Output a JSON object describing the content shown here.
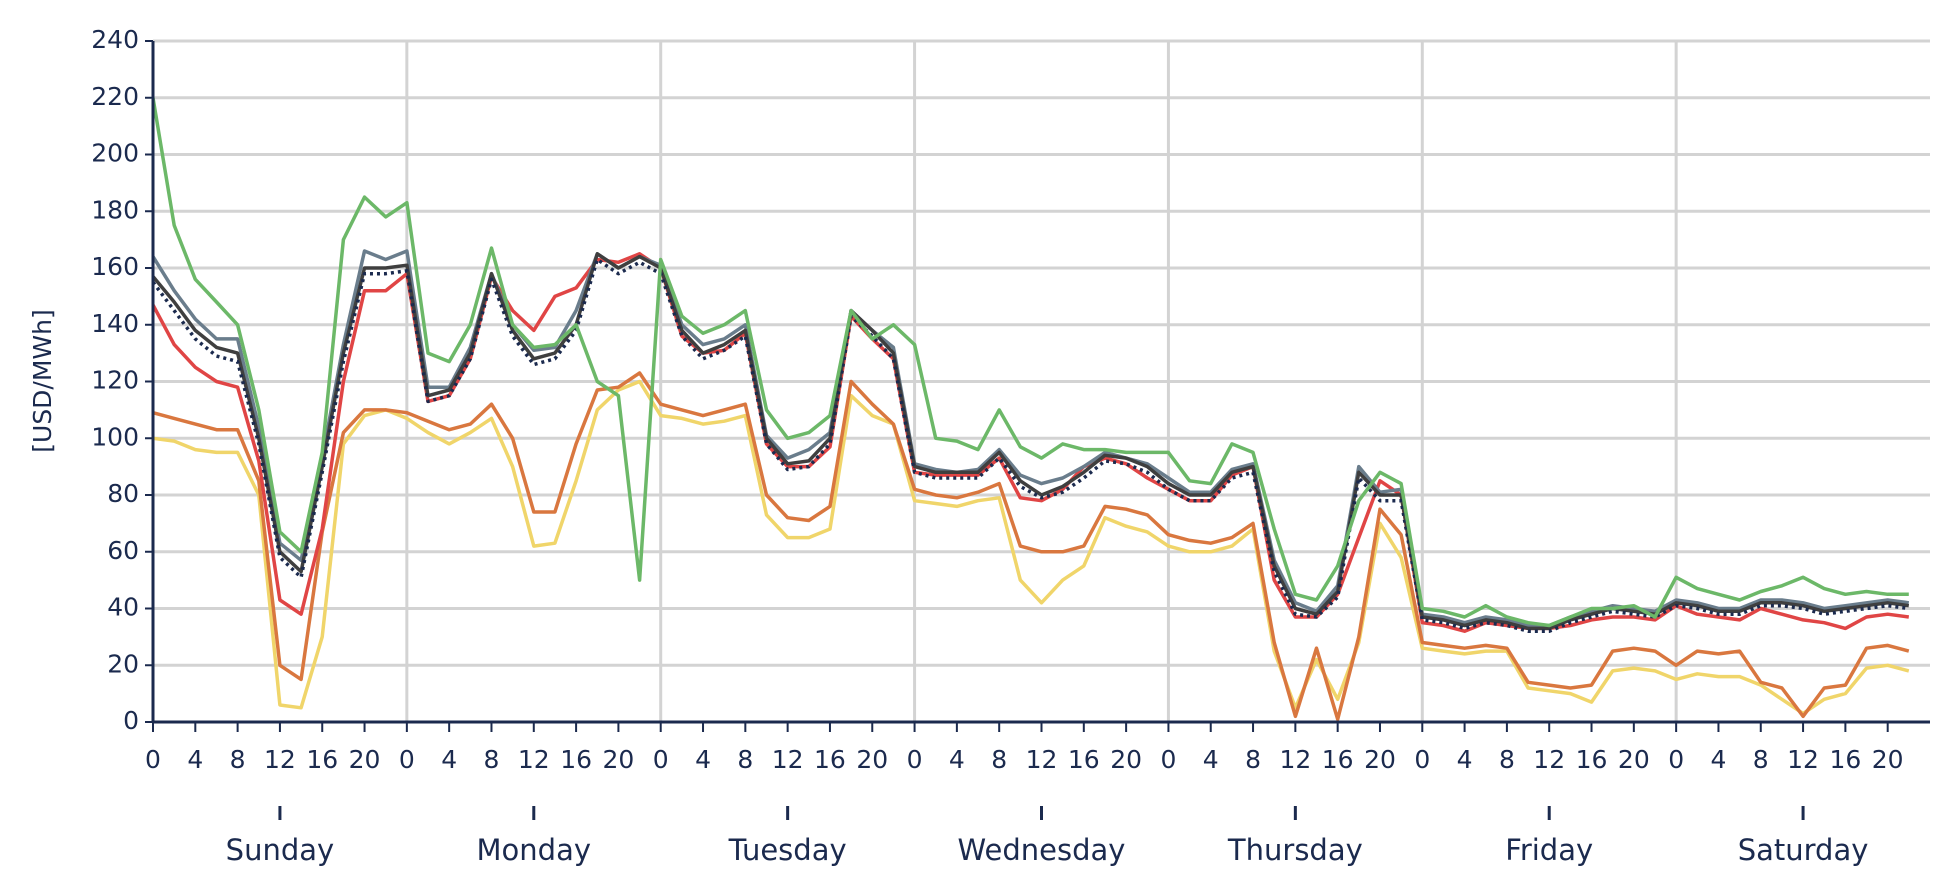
{
  "chart_data": {
    "type": "line",
    "ylabel": "[USD/MWh]",
    "xlim": [
      0,
      168
    ],
    "ylim": [
      0,
      240
    ],
    "yticks": [
      0,
      20,
      40,
      60,
      80,
      100,
      120,
      140,
      160,
      180,
      200,
      220,
      240
    ],
    "xticks": [
      {
        "value": 0,
        "label": "0"
      },
      {
        "value": 4,
        "label": "4"
      },
      {
        "value": 8,
        "label": "8"
      },
      {
        "value": 12,
        "label": "12"
      },
      {
        "value": 16,
        "label": "16"
      },
      {
        "value": 20,
        "label": "20"
      },
      {
        "value": 24,
        "label": "0"
      },
      {
        "value": 28,
        "label": "4"
      },
      {
        "value": 32,
        "label": "8"
      },
      {
        "value": 36,
        "label": "12"
      },
      {
        "value": 40,
        "label": "16"
      },
      {
        "value": 44,
        "label": "20"
      },
      {
        "value": 48,
        "label": "0"
      },
      {
        "value": 52,
        "label": "4"
      },
      {
        "value": 56,
        "label": "8"
      },
      {
        "value": 60,
        "label": "12"
      },
      {
        "value": 64,
        "label": "16"
      },
      {
        "value": 68,
        "label": "20"
      },
      {
        "value": 72,
        "label": "0"
      },
      {
        "value": 76,
        "label": "4"
      },
      {
        "value": 80,
        "label": "8"
      },
      {
        "value": 84,
        "label": "12"
      },
      {
        "value": 88,
        "label": "16"
      },
      {
        "value": 92,
        "label": "20"
      },
      {
        "value": 96,
        "label": "0"
      },
      {
        "value": 100,
        "label": "4"
      },
      {
        "value": 104,
        "label": "8"
      },
      {
        "value": 108,
        "label": "12"
      },
      {
        "value": 112,
        "label": "16"
      },
      {
        "value": 116,
        "label": "20"
      },
      {
        "value": 120,
        "label": "0"
      },
      {
        "value": 124,
        "label": "4"
      },
      {
        "value": 128,
        "label": "8"
      },
      {
        "value": 132,
        "label": "12"
      },
      {
        "value": 136,
        "label": "16"
      },
      {
        "value": 140,
        "label": "20"
      },
      {
        "value": 144,
        "label": "0"
      },
      {
        "value": 148,
        "label": "4"
      },
      {
        "value": 152,
        "label": "8"
      },
      {
        "value": 156,
        "label": "12"
      },
      {
        "value": 160,
        "label": "16"
      },
      {
        "value": 164,
        "label": "20"
      }
    ],
    "day_ticks": [
      {
        "value": 12,
        "label": "Sunday"
      },
      {
        "value": 36,
        "label": "Monday"
      },
      {
        "value": 60,
        "label": "Tuesday"
      },
      {
        "value": 84,
        "label": "Wednesday"
      },
      {
        "value": 108,
        "label": "Thursday"
      },
      {
        "value": 132,
        "label": "Friday"
      },
      {
        "value": 156,
        "label": "Saturday"
      }
    ],
    "day_grid": [
      24,
      48,
      72,
      96,
      120,
      144
    ],
    "grid": true,
    "x": [
      0,
      2,
      4,
      6,
      8,
      10,
      12,
      14,
      16,
      18,
      20,
      22,
      24,
      26,
      28,
      30,
      32,
      34,
      36,
      38,
      40,
      42,
      44,
      46,
      48,
      50,
      52,
      54,
      56,
      58,
      60,
      62,
      64,
      66,
      68,
      70,
      72,
      74,
      76,
      78,
      80,
      82,
      84,
      86,
      88,
      90,
      92,
      94,
      96,
      98,
      100,
      102,
      104,
      106,
      108,
      110,
      112,
      114,
      116,
      118,
      120,
      122,
      124,
      126,
      128,
      130,
      132,
      134,
      136,
      138,
      140,
      142,
      144,
      146,
      148,
      150,
      152,
      154,
      156,
      158,
      160,
      162,
      164,
      166
    ],
    "series": [
      {
        "color": "#f0d56a",
        "dash": false,
        "values": [
          100,
          99,
          96,
          95,
          95,
          80,
          6,
          5,
          30,
          98,
          108,
          110,
          107,
          102,
          98,
          102,
          107,
          90,
          62,
          63,
          85,
          110,
          117,
          120,
          108,
          107,
          105,
          106,
          108,
          73,
          65,
          65,
          68,
          115,
          108,
          105,
          78,
          77,
          76,
          78,
          79,
          50,
          42,
          50,
          55,
          72,
          69,
          67,
          62,
          60,
          60,
          62,
          68,
          25,
          5,
          22,
          8,
          28,
          70,
          58,
          26,
          25,
          24,
          25,
          25,
          12,
          11,
          10,
          7,
          18,
          19,
          18,
          15,
          17,
          16,
          16,
          13,
          8,
          3,
          8,
          10,
          19,
          20,
          18
        ]
      },
      {
        "color": "#d9773f",
        "dash": false,
        "values": [
          109,
          107,
          105,
          103,
          103,
          85,
          20,
          15,
          67,
          102,
          110,
          110,
          109,
          106,
          103,
          105,
          112,
          100,
          74,
          74,
          98,
          117,
          118,
          123,
          112,
          110,
          108,
          110,
          112,
          80,
          72,
          71,
          76,
          120,
          112,
          105,
          82,
          80,
          79,
          81,
          84,
          62,
          60,
          60,
          62,
          76,
          75,
          73,
          66,
          64,
          63,
          65,
          70,
          28,
          2,
          26,
          1,
          30,
          75,
          66,
          28,
          27,
          26,
          27,
          26,
          14,
          13,
          12,
          13,
          25,
          26,
          25,
          20,
          25,
          24,
          25,
          14,
          12,
          2,
          12,
          13,
          26,
          27,
          25
        ]
      },
      {
        "color": "#e04545",
        "dash": false,
        "values": [
          147,
          133,
          125,
          120,
          118,
          92,
          43,
          38,
          68,
          120,
          152,
          152,
          158,
          113,
          115,
          128,
          157,
          145,
          138,
          150,
          153,
          163,
          162,
          165,
          160,
          136,
          130,
          131,
          137,
          98,
          90,
          90,
          97,
          143,
          135,
          128,
          88,
          87,
          87,
          87,
          93,
          79,
          78,
          82,
          90,
          93,
          91,
          86,
          82,
          78,
          78,
          87,
          90,
          50,
          37,
          37,
          45,
          65,
          85,
          80,
          35,
          34,
          32,
          35,
          34,
          33,
          33,
          34,
          36,
          37,
          37,
          36,
          41,
          38,
          37,
          36,
          40,
          38,
          36,
          35,
          33,
          37,
          38,
          37
        ]
      },
      {
        "color": "#6a7d8c",
        "dash": false,
        "values": [
          164,
          152,
          142,
          135,
          135,
          104,
          63,
          57,
          93,
          133,
          166,
          163,
          166,
          118,
          118,
          132,
          158,
          140,
          131,
          132,
          145,
          165,
          160,
          164,
          161,
          140,
          133,
          135,
          140,
          101,
          93,
          96,
          102,
          145,
          138,
          132,
          91,
          89,
          88,
          89,
          96,
          87,
          84,
          86,
          90,
          95,
          93,
          91,
          86,
          81,
          81,
          89,
          91,
          57,
          42,
          39,
          48,
          90,
          81,
          82,
          38,
          37,
          35,
          37,
          36,
          34,
          34,
          37,
          39,
          41,
          40,
          39,
          43,
          42,
          40,
          40,
          43,
          43,
          42,
          40,
          41,
          42,
          43,
          42
        ]
      },
      {
        "color": "#3f3f3f",
        "dash": false,
        "values": [
          157,
          148,
          138,
          132,
          130,
          100,
          60,
          53,
          90,
          130,
          160,
          160,
          161,
          115,
          117,
          130,
          158,
          138,
          128,
          130,
          140,
          165,
          160,
          164,
          160,
          138,
          130,
          133,
          138,
          100,
          91,
          92,
          100,
          145,
          138,
          130,
          90,
          88,
          88,
          88,
          95,
          85,
          80,
          83,
          88,
          94,
          93,
          90,
          84,
          80,
          80,
          88,
          90,
          55,
          40,
          38,
          46,
          88,
          80,
          80,
          37,
          36,
          34,
          36,
          35,
          33,
          33,
          36,
          38,
          40,
          39,
          38,
          42,
          41,
          39,
          39,
          42,
          42,
          41,
          39,
          40,
          41,
          42,
          41
        ]
      },
      {
        "color": "#1b2a4e",
        "dash": true,
        "values": [
          155,
          145,
          135,
          129,
          127,
          98,
          58,
          51,
          88,
          127,
          158,
          158,
          159,
          113,
          115,
          128,
          156,
          136,
          126,
          128,
          138,
          163,
          158,
          162,
          158,
          136,
          128,
          131,
          136,
          98,
          89,
          90,
          98,
          143,
          136,
          128,
          88,
          86,
          86,
          86,
          93,
          83,
          79,
          81,
          86,
          92,
          91,
          88,
          82,
          78,
          78,
          86,
          88,
          53,
          38,
          37,
          44,
          86,
          78,
          78,
          36,
          35,
          33,
          35,
          34,
          32,
          32,
          35,
          37,
          39,
          38,
          37,
          41,
          40,
          38,
          38,
          41,
          41,
          40,
          38,
          39,
          40,
          41,
          40
        ]
      },
      {
        "color": "#6cb868",
        "dash": false,
        "values": [
          220,
          175,
          156,
          148,
          140,
          110,
          67,
          60,
          95,
          170,
          185,
          178,
          183,
          130,
          127,
          140,
          167,
          140,
          132,
          133,
          140,
          120,
          115,
          50,
          163,
          143,
          137,
          140,
          145,
          110,
          100,
          102,
          108,
          145,
          135,
          140,
          133,
          100,
          99,
          96,
          110,
          97,
          93,
          98,
          96,
          96,
          95,
          95,
          95,
          85,
          84,
          98,
          95,
          68,
          45,
          43,
          55,
          78,
          88,
          84,
          40,
          39,
          37,
          41,
          37,
          35,
          34,
          37,
          40,
          40,
          41,
          37,
          51,
          47,
          45,
          43,
          46,
          48,
          51,
          47,
          45,
          46,
          45,
          45
        ]
      }
    ]
  }
}
